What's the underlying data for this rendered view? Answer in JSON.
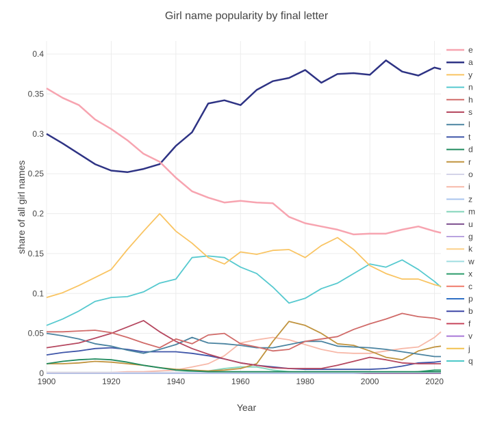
{
  "chart_data": {
    "type": "line",
    "title": "Girl name popularity by final letter",
    "xlabel": "Year",
    "ylabel": "share of all girl names",
    "xlim": [
      1900,
      2022
    ],
    "ylim": [
      0,
      0.42
    ],
    "x_ticks": [
      "1900",
      "1920",
      "1940",
      "1960",
      "1980",
      "2000",
      "2020"
    ],
    "y_ticks": [
      "0",
      "0.05",
      "0.1",
      "0.15",
      "0.2",
      "0.25",
      "0.3",
      "0.35",
      "0.4"
    ],
    "grid": true,
    "legend_position": "right",
    "x": [
      1900,
      1905,
      1910,
      1915,
      1920,
      1925,
      1930,
      1935,
      1940,
      1945,
      1950,
      1955,
      1960,
      1965,
      1970,
      1975,
      1980,
      1985,
      1990,
      1995,
      2000,
      2005,
      2010,
      2015,
      2020,
      2022
    ],
    "series": [
      {
        "name": "e",
        "color": "#f7a4b0",
        "values": [
          0.357,
          0.345,
          0.336,
          0.318,
          0.306,
          0.292,
          0.275,
          0.265,
          0.245,
          0.228,
          0.22,
          0.214,
          0.216,
          0.214,
          0.213,
          0.196,
          0.188,
          0.184,
          0.18,
          0.174,
          0.175,
          0.175,
          0.18,
          0.184,
          0.178,
          0.176
        ]
      },
      {
        "name": "a",
        "color": "#2e3384",
        "values": [
          0.3,
          0.288,
          0.275,
          0.262,
          0.254,
          0.252,
          0.256,
          0.262,
          0.285,
          0.302,
          0.338,
          0.342,
          0.336,
          0.355,
          0.366,
          0.37,
          0.38,
          0.364,
          0.375,
          0.376,
          0.374,
          0.392,
          0.378,
          0.373,
          0.383,
          0.381
        ]
      },
      {
        "name": "y",
        "color": "#f9c462",
        "values": [
          0.095,
          0.101,
          0.11,
          0.12,
          0.13,
          0.155,
          0.178,
          0.2,
          0.178,
          0.163,
          0.145,
          0.137,
          0.152,
          0.149,
          0.154,
          0.155,
          0.145,
          0.16,
          0.17,
          0.155,
          0.135,
          0.125,
          0.118,
          0.118,
          0.111,
          0.109
        ]
      },
      {
        "name": "n",
        "color": "#56c9cf",
        "values": [
          0.06,
          0.068,
          0.078,
          0.09,
          0.095,
          0.096,
          0.102,
          0.113,
          0.118,
          0.145,
          0.147,
          0.145,
          0.133,
          0.125,
          0.108,
          0.088,
          0.094,
          0.106,
          0.113,
          0.125,
          0.137,
          0.133,
          0.142,
          0.13,
          0.115,
          0.108
        ]
      },
      {
        "name": "h",
        "color": "#d06a68",
        "values": [
          0.052,
          0.052,
          0.053,
          0.054,
          0.051,
          0.045,
          0.038,
          0.032,
          0.043,
          0.037,
          0.048,
          0.05,
          0.037,
          0.033,
          0.028,
          0.03,
          0.04,
          0.043,
          0.046,
          0.055,
          0.062,
          0.068,
          0.075,
          0.071,
          0.069,
          0.067
        ]
      },
      {
        "name": "s",
        "color": "#b5475f",
        "values": [
          0.032,
          0.035,
          0.038,
          0.044,
          0.05,
          0.058,
          0.066,
          0.052,
          0.04,
          0.031,
          0.024,
          0.018,
          0.013,
          0.01,
          0.007,
          0.006,
          0.006,
          0.006,
          0.01,
          0.015,
          0.02,
          0.017,
          0.013,
          0.012,
          0.012,
          0.012
        ]
      },
      {
        "name": "l",
        "color": "#4a83a0",
        "values": [
          0.05,
          0.047,
          0.043,
          0.037,
          0.034,
          0.029,
          0.025,
          0.03,
          0.036,
          0.045,
          0.038,
          0.037,
          0.035,
          0.032,
          0.032,
          0.036,
          0.04,
          0.04,
          0.034,
          0.033,
          0.032,
          0.03,
          0.027,
          0.024,
          0.021,
          0.021
        ]
      },
      {
        "name": "t",
        "color": "#3e55a8",
        "values": [
          0.023,
          0.026,
          0.028,
          0.031,
          0.032,
          0.03,
          0.027,
          0.027,
          0.027,
          0.025,
          0.022,
          0.018,
          0.013,
          0.01,
          0.008,
          0.006,
          0.005,
          0.005,
          0.005,
          0.005,
          0.005,
          0.006,
          0.009,
          0.013,
          0.014,
          0.015
        ]
      },
      {
        "name": "d",
        "color": "#1f8a5e",
        "values": [
          0.012,
          0.015,
          0.017,
          0.018,
          0.017,
          0.014,
          0.01,
          0.007,
          0.004,
          0.003,
          0.002,
          0.002,
          0.002,
          0.002,
          0.002,
          0.002,
          0.002,
          0.002,
          0.002,
          0.002,
          0.002,
          0.002,
          0.002,
          0.002,
          0.002,
          0.002
        ]
      },
      {
        "name": "r",
        "color": "#c0933e",
        "values": [
          0.012,
          0.012,
          0.013,
          0.015,
          0.014,
          0.012,
          0.01,
          0.007,
          0.005,
          0.004,
          0.003,
          0.004,
          0.006,
          0.012,
          0.04,
          0.065,
          0.06,
          0.05,
          0.037,
          0.035,
          0.028,
          0.02,
          0.017,
          0.028,
          0.033,
          0.034
        ]
      },
      {
        "name": "o",
        "color": "#d4d4e8",
        "values": [
          0.001,
          0.001,
          0.001,
          0.001,
          0.001,
          0.001,
          0.001,
          0.001,
          0.001,
          0.001,
          0.001,
          0.001,
          0.001,
          0.001,
          0.001,
          0.001,
          0.001,
          0.001,
          0.001,
          0.001,
          0.001,
          0.001,
          0.001,
          0.001,
          0.001,
          0.001
        ]
      },
      {
        "name": "i",
        "color": "#f7b8a8",
        "values": [
          0.001,
          0.001,
          0.001,
          0.001,
          0.001,
          0.002,
          0.002,
          0.003,
          0.004,
          0.008,
          0.012,
          0.022,
          0.038,
          0.042,
          0.045,
          0.042,
          0.036,
          0.03,
          0.026,
          0.025,
          0.025,
          0.028,
          0.031,
          0.033,
          0.045,
          0.052
        ]
      },
      {
        "name": "z",
        "color": "#a9c4ee",
        "values": [
          0,
          0,
          0,
          0,
          0,
          0,
          0,
          0,
          0,
          0,
          0,
          0,
          0,
          0,
          0,
          0,
          0,
          0,
          0,
          0,
          0.001,
          0.001,
          0.001,
          0.001,
          0.001,
          0.001
        ]
      },
      {
        "name": "m",
        "color": "#7fd4b9",
        "values": [
          0.001,
          0.001,
          0.001,
          0.001,
          0.001,
          0.001,
          0.001,
          0.001,
          0.001,
          0.002,
          0.003,
          0.006,
          0.008,
          0.008,
          0.004,
          0.002,
          0.001,
          0.001,
          0.001,
          0.001,
          0.001,
          0.001,
          0.001,
          0.001,
          0.001,
          0.001
        ]
      },
      {
        "name": "u",
        "color": "#7a4b8c",
        "values": [
          0,
          0,
          0,
          0,
          0,
          0,
          0,
          0,
          0,
          0,
          0,
          0,
          0,
          0,
          0,
          0,
          0,
          0,
          0,
          0,
          0,
          0,
          0,
          0,
          0,
          0
        ]
      },
      {
        "name": "g",
        "color": "#b9a3e0",
        "values": [
          0,
          0,
          0,
          0,
          0,
          0,
          0,
          0,
          0,
          0,
          0,
          0,
          0,
          0,
          0,
          0,
          0,
          0,
          0,
          0,
          0,
          0,
          0,
          0,
          0,
          0
        ]
      },
      {
        "name": "k",
        "color": "#fcd089",
        "values": [
          0,
          0,
          0,
          0,
          0,
          0,
          0,
          0,
          0,
          0,
          0,
          0,
          0,
          0,
          0,
          0,
          0,
          0,
          0,
          0,
          0,
          0,
          0,
          0,
          0,
          0
        ]
      },
      {
        "name": "w",
        "color": "#9fdde0",
        "values": [
          0,
          0,
          0,
          0,
          0,
          0,
          0,
          0,
          0,
          0,
          0,
          0,
          0,
          0,
          0,
          0,
          0,
          0,
          0,
          0,
          0,
          0,
          0,
          0,
          0,
          0
        ]
      },
      {
        "name": "x",
        "color": "#2a9b6a",
        "values": [
          0,
          0,
          0,
          0,
          0,
          0,
          0,
          0,
          0,
          0,
          0,
          0,
          0,
          0,
          0,
          0,
          0,
          0,
          0,
          0,
          0,
          0,
          0.001,
          0.002,
          0.004,
          0.004
        ]
      },
      {
        "name": "c",
        "color": "#f07a6a",
        "values": [
          0,
          0,
          0,
          0,
          0,
          0,
          0,
          0,
          0,
          0,
          0,
          0,
          0,
          0,
          0,
          0,
          0,
          0,
          0,
          0,
          0,
          0,
          0,
          0,
          0,
          0
        ]
      },
      {
        "name": "p",
        "color": "#2f6fc4",
        "values": [
          0,
          0,
          0,
          0,
          0,
          0,
          0,
          0,
          0,
          0,
          0,
          0,
          0,
          0,
          0,
          0,
          0,
          0,
          0,
          0,
          0,
          0,
          0,
          0,
          0,
          0
        ]
      },
      {
        "name": "b",
        "color": "#3c45a5",
        "values": [
          0,
          0,
          0,
          0,
          0,
          0,
          0,
          0,
          0,
          0,
          0,
          0,
          0,
          0,
          0,
          0,
          0,
          0,
          0,
          0,
          0,
          0,
          0,
          0,
          0,
          0
        ]
      },
      {
        "name": "f",
        "color": "#c7465c",
        "values": [
          0,
          0,
          0,
          0,
          0,
          0,
          0,
          0,
          0,
          0,
          0,
          0,
          0,
          0,
          0,
          0,
          0,
          0,
          0,
          0,
          0,
          0,
          0,
          0,
          0,
          0
        ]
      },
      {
        "name": "v",
        "color": "#a877d8",
        "values": [
          0,
          0,
          0,
          0,
          0,
          0,
          0,
          0,
          0,
          0,
          0,
          0,
          0,
          0,
          0,
          0,
          0,
          0,
          0,
          0,
          0,
          0,
          0,
          0,
          0,
          0
        ]
      },
      {
        "name": "j",
        "color": "#f2c14e",
        "values": [
          0,
          0,
          0,
          0,
          0,
          0,
          0,
          0,
          0,
          0,
          0,
          0,
          0,
          0,
          0,
          0,
          0,
          0,
          0,
          0,
          0,
          0,
          0,
          0,
          0,
          0
        ]
      },
      {
        "name": "q",
        "color": "#4cc8c8",
        "values": [
          0,
          0,
          0,
          0,
          0,
          0,
          0,
          0,
          0,
          0,
          0,
          0,
          0,
          0,
          0,
          0,
          0,
          0,
          0,
          0,
          0,
          0,
          0,
          0,
          0,
          0.001
        ]
      }
    ]
  }
}
